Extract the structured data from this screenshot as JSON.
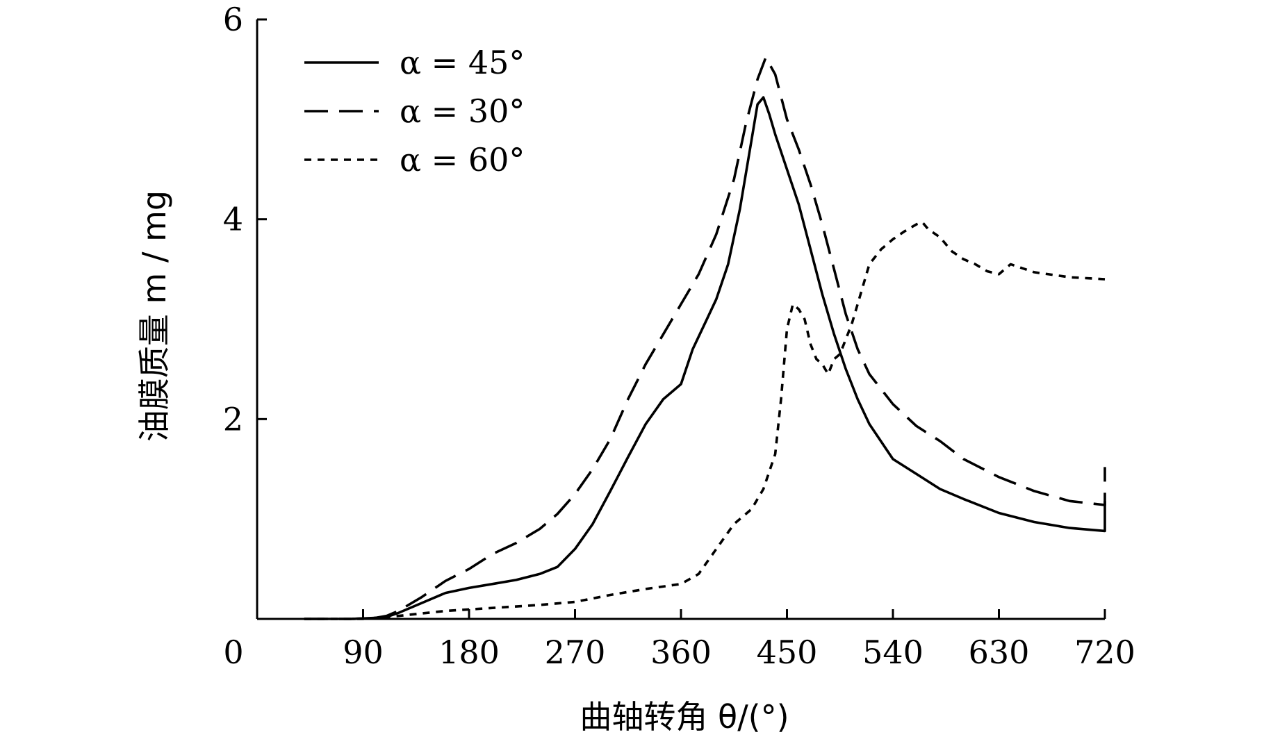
{
  "chart_data": {
    "type": "line",
    "xlabel": "曲轴转角 θ/(°)",
    "ylabel": "油膜质量 m / mg",
    "xlim": [
      0,
      720
    ],
    "ylim": [
      0,
      6
    ],
    "xticks": [
      "0",
      "90",
      "180",
      "270",
      "360",
      "450",
      "540",
      "630",
      "720"
    ],
    "yticks": [
      "2",
      "4",
      "6"
    ],
    "legend_position": "top-left",
    "grid": false,
    "series": [
      {
        "name": "α = 45°",
        "style": "solid",
        "x": [
          40,
          80,
          100,
          110,
          120,
          140,
          160,
          180,
          200,
          220,
          240,
          255,
          270,
          285,
          300,
          315,
          330,
          345,
          360,
          370,
          380,
          390,
          400,
          410,
          420,
          425,
          430,
          435,
          440,
          450,
          460,
          470,
          480,
          490,
          500,
          510,
          520,
          540,
          560,
          580,
          600,
          630,
          660,
          690,
          720,
          720
        ],
        "y": [
          0.0,
          0.0,
          0.01,
          0.02,
          0.06,
          0.16,
          0.26,
          0.31,
          0.35,
          0.39,
          0.45,
          0.52,
          0.7,
          0.95,
          1.28,
          1.62,
          1.95,
          2.2,
          2.35,
          2.7,
          2.95,
          3.2,
          3.55,
          4.1,
          4.8,
          5.15,
          5.22,
          5.05,
          4.85,
          4.5,
          4.15,
          3.7,
          3.25,
          2.85,
          2.5,
          2.2,
          1.95,
          1.6,
          1.45,
          1.3,
          1.2,
          1.06,
          0.97,
          0.91,
          0.88,
          1.18
        ]
      },
      {
        "name": "α = 30°",
        "style": "dashed",
        "x": [
          40,
          80,
          100,
          110,
          120,
          140,
          160,
          180,
          200,
          220,
          240,
          255,
          270,
          285,
          300,
          315,
          330,
          345,
          360,
          375,
          390,
          405,
          415,
          425,
          432,
          440,
          450,
          460,
          470,
          480,
          490,
          500,
          510,
          520,
          540,
          560,
          580,
          600,
          630,
          660,
          690,
          720,
          720
        ],
        "y": [
          0.0,
          0.0,
          0.01,
          0.03,
          0.08,
          0.22,
          0.38,
          0.5,
          0.65,
          0.76,
          0.9,
          1.05,
          1.25,
          1.5,
          1.8,
          2.2,
          2.55,
          2.85,
          3.15,
          3.45,
          3.85,
          4.4,
          4.95,
          5.4,
          5.62,
          5.45,
          5.0,
          4.7,
          4.35,
          3.95,
          3.5,
          3.05,
          2.7,
          2.45,
          2.15,
          1.93,
          1.78,
          1.6,
          1.42,
          1.28,
          1.18,
          1.14,
          1.52
        ]
      },
      {
        "name": "α = 60°",
        "style": "dotted",
        "x": [
          40,
          90,
          120,
          160,
          200,
          240,
          270,
          300,
          330,
          360,
          375,
          390,
          405,
          420,
          430,
          440,
          445,
          450,
          455,
          460,
          465,
          470,
          475,
          480,
          485,
          490,
          495,
          500,
          505,
          510,
          520,
          530,
          540,
          550,
          560,
          565,
          570,
          580,
          590,
          600,
          610,
          620,
          630,
          640,
          660,
          690,
          720
        ],
        "y": [
          0.0,
          0.0,
          0.03,
          0.08,
          0.11,
          0.14,
          0.17,
          0.24,
          0.3,
          0.35,
          0.45,
          0.7,
          0.95,
          1.1,
          1.3,
          1.65,
          2.2,
          2.9,
          3.15,
          3.1,
          3.0,
          2.75,
          2.6,
          2.55,
          2.45,
          2.6,
          2.65,
          2.8,
          2.95,
          3.15,
          3.55,
          3.7,
          3.8,
          3.88,
          3.95,
          3.97,
          3.9,
          3.82,
          3.68,
          3.6,
          3.55,
          3.48,
          3.45,
          3.55,
          3.47,
          3.42,
          3.4
        ]
      }
    ]
  }
}
